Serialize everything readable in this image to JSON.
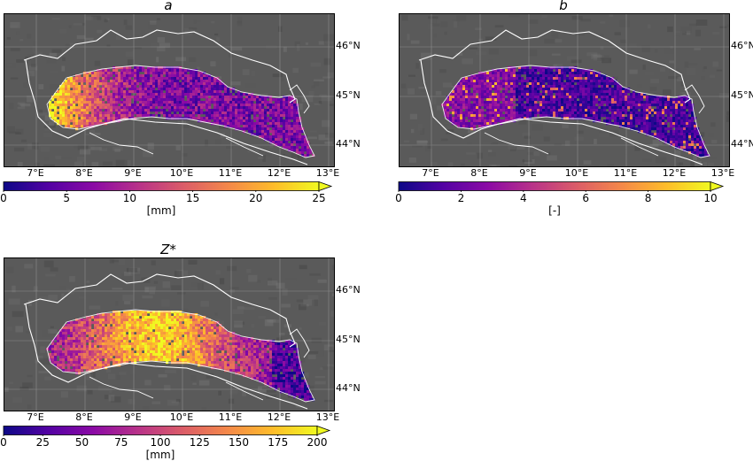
{
  "panels": [
    {
      "id": "a",
      "title": "a",
      "colormap": "plasma",
      "unit": "[mm]",
      "colorbar_ticks": [
        "0",
        "5",
        "10",
        "15",
        "20",
        "25"
      ],
      "extend": "max"
    },
    {
      "id": "b",
      "title": "b",
      "colormap": "plasma",
      "unit": "[-]",
      "colorbar_ticks": [
        "0",
        "2",
        "4",
        "6",
        "8",
        "10"
      ],
      "extend": "max"
    },
    {
      "id": "z",
      "title": "Z*",
      "colormap": "plasma",
      "unit": "[mm]",
      "colorbar_ticks": [
        "0",
        "25",
        "50",
        "75",
        "100",
        "125",
        "150",
        "175",
        "200"
      ],
      "extend": "max"
    }
  ],
  "lon_labels": [
    "7°E",
    "8°E",
    "9°E",
    "10°E",
    "11°E",
    "12°E",
    "13°E"
  ],
  "lat_labels": [
    "46°N",
    "45°N",
    "44°N"
  ],
  "colors": {
    "background_relief": "#5a5a5a",
    "boundary": "#ffffff",
    "plasma": [
      "#0d0887",
      "#5302a3",
      "#8b0aa5",
      "#b83289",
      "#db5c68",
      "#f48849",
      "#febc2a",
      "#f0f921"
    ]
  }
}
